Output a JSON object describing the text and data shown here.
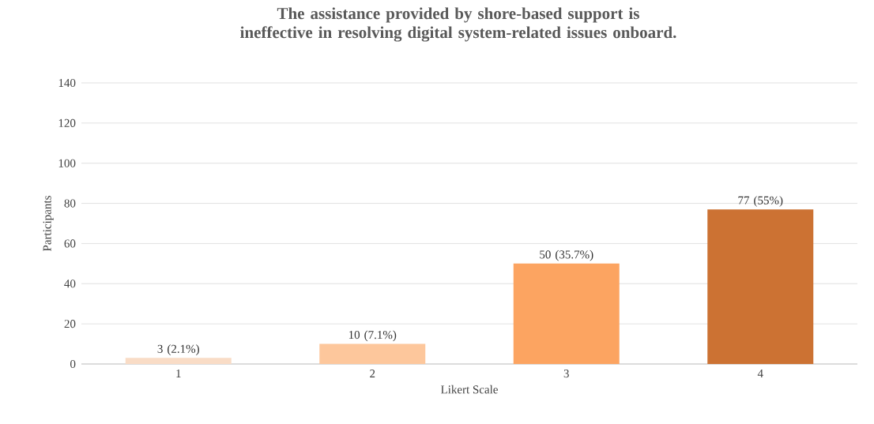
{
  "chart_data": {
    "type": "bar",
    "title": "The assistance provided by shore-based support is ineffective in resolving digital system-related issues onboard.",
    "xlabel": "Likert Scale",
    "ylabel": "Participants",
    "categories": [
      "1",
      "2",
      "3",
      "4"
    ],
    "values": [
      3,
      10,
      50,
      77
    ],
    "colors": [
      "#f9dcc6",
      "#fdc79c",
      "#fca461",
      "#cc7233"
    ],
    "value_labels": [
      "3 (2.1%)",
      "10 (7.1%)",
      "50 (35.7%)",
      "77 (55%)"
    ],
    "ylim": [
      0,
      140
    ],
    "yticks": [
      0,
      20,
      40,
      60,
      80,
      100,
      120,
      140
    ],
    "grid": "y"
  }
}
